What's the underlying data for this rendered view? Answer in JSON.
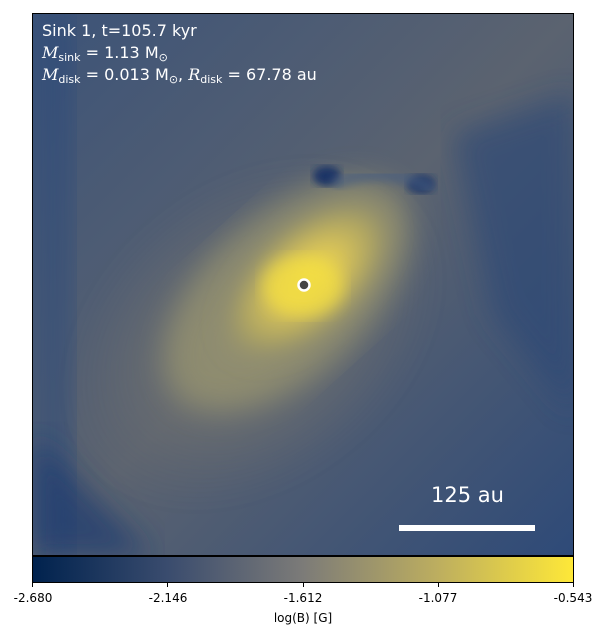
{
  "annotations": {
    "title": "Sink 1, t=105.7 kyr",
    "m_sink_symbol": "M",
    "m_sink_subscript": "sink",
    "m_sink_value": " = 1.13 M",
    "m_sink_unit_subscript": "⊙",
    "m_disk_symbol": "M",
    "m_disk_subscript": "disk",
    "m_disk_value": " = 0.013 M",
    "m_disk_unit_subscript": "⊙",
    "separator": ", ",
    "r_disk_symbol": "R",
    "r_disk_subscript": "disk",
    "r_disk_value": " = 67.78 au"
  },
  "scalebar": {
    "label": "125 au"
  },
  "colorbar": {
    "label": "log(B) [G]",
    "ticks": [
      "-2.680",
      "-2.146",
      "-1.612",
      "-1.077",
      "-0.543"
    ],
    "colormap": [
      "#00224e",
      "#3a4c6e",
      "#7c7b78",
      "#bdae5f",
      "#fee838"
    ]
  },
  "sink_marker": {
    "fill": "#444444",
    "stroke": "#ffffff"
  }
}
